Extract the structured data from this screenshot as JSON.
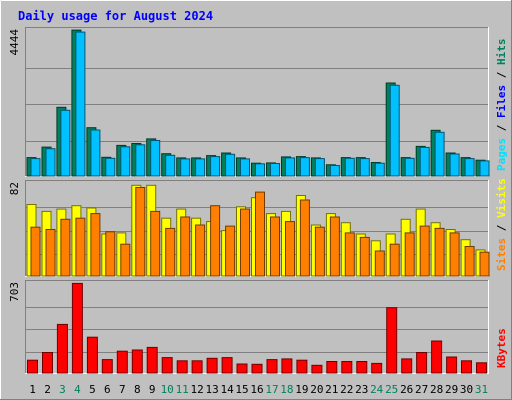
{
  "chart_data": {
    "type": "bar",
    "title": "Daily usage for August 2024",
    "categories": [
      "1",
      "2",
      "3",
      "4",
      "5",
      "6",
      "7",
      "8",
      "9",
      "10",
      "11",
      "12",
      "13",
      "14",
      "15",
      "16",
      "17",
      "18",
      "19",
      "20",
      "21",
      "22",
      "23",
      "24",
      "25",
      "26",
      "27",
      "28",
      "29",
      "30",
      "31"
    ],
    "weekend_days": [
      "3",
      "4",
      "10",
      "11",
      "17",
      "18",
      "24",
      "25",
      "31"
    ],
    "colors": {
      "hits": "#00805c",
      "files": "#00c0ff",
      "sites": "#ff8000",
      "visits": "#ffff00",
      "kbytes": "#ff0000",
      "pages": "#00e0ff",
      "weekday_label": "#000000",
      "weekend_label": "#00805c",
      "title": "#0000ff",
      "plot_bg": "#c0c0c0"
    },
    "panels": [
      {
        "id": "hits",
        "max_label": "4444",
        "ylim": [
          0,
          4444
        ],
        "legend": [
          {
            "text": "Pages",
            "color": "#00e0ff"
          },
          {
            "text": " / ",
            "color": "#000000"
          },
          {
            "text": "Files",
            "color": "#0000ff"
          },
          {
            "text": " / ",
            "color": "#000000"
          },
          {
            "text": "Hits",
            "color": "#00805c"
          }
        ],
        "series": [
          {
            "key": "hits",
            "values": [
              560,
              880,
              2090,
              4440,
              1470,
              570,
              930,
              990,
              1130,
              680,
              550,
              550,
              620,
              700,
              550,
              390,
              400,
              580,
              590,
              550,
              340,
              560,
              560,
              410,
              2830,
              560,
              900,
              1390,
              700,
              560,
              480
            ]
          },
          {
            "key": "files",
            "values": [
              530,
              830,
              2000,
              4380,
              1400,
              540,
              890,
              950,
              1080,
              630,
              520,
              520,
              590,
              660,
              520,
              370,
              380,
              550,
              560,
              530,
              320,
              540,
              530,
              390,
              2760,
              540,
              870,
              1330,
              670,
              530,
              460
            ]
          }
        ]
      },
      {
        "id": "visits",
        "max_label": "82",
        "ylim": [
          0,
          82
        ],
        "legend": [
          {
            "text": "Sites",
            "color": "#ff8000"
          },
          {
            "text": " / ",
            "color": "#000000"
          },
          {
            "text": "Visits",
            "color": "#ffff00"
          }
        ],
        "series": [
          {
            "key": "visits",
            "values": [
              63,
              57,
              59,
              62,
              60,
              37,
              38,
              80,
              80,
              51,
              59,
              51,
              48,
              40,
              61,
              69,
              55,
              57,
              71,
              45,
              55,
              47,
              37,
              31,
              37,
              50,
              59,
              47,
              41,
              32,
              23
            ]
          },
          {
            "key": "sites",
            "values": [
              43,
              41,
              50,
              51,
              55,
              39,
              28,
              78,
              57,
              42,
              52,
              45,
              62,
              44,
              59,
              74,
              52,
              48,
              67,
              43,
              52,
              38,
              34,
              22,
              28,
              38,
              44,
              42,
              38,
              26,
              21
            ]
          }
        ]
      },
      {
        "id": "kbytes",
        "max_label": "703",
        "ylim": [
          0,
          703
        ],
        "legend": [
          {
            "text": "KBytes",
            "color": "#ff0000"
          }
        ],
        "series": [
          {
            "key": "kbytes",
            "values": [
              100,
              160,
              380,
              700,
              280,
              105,
              170,
              180,
              200,
              120,
              95,
              95,
              115,
              120,
              70,
              68,
              105,
              110,
              100,
              60,
              90,
              90,
              90,
              75,
              510,
              110,
              160,
              250,
              125,
              95,
              80
            ]
          }
        ]
      }
    ]
  }
}
